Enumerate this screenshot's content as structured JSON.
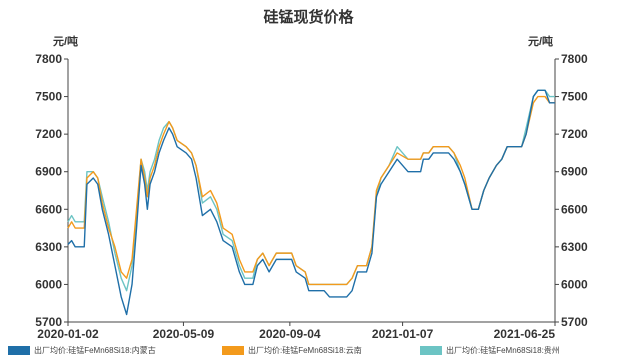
{
  "chart_data": {
    "type": "line",
    "title": "硅锰现货价格",
    "ylabel_left": "元/吨",
    "ylabel_right": "元/吨",
    "ylim": [
      5700,
      7800
    ],
    "yticks": [
      5700,
      6000,
      6300,
      6600,
      6900,
      7200,
      7500,
      7800
    ],
    "x_tick_labels": [
      "2020-01-02",
      "2020-05-09",
      "2020-09-04",
      "2021-01-07",
      "2021-06-25"
    ],
    "x_tick_dates": [
      "2020-01-02",
      "2020-05-09",
      "2020-09-04",
      "2021-01-07",
      "2021-06-25"
    ],
    "x_range": [
      "2020-01-02",
      "2021-06-25"
    ],
    "grid": false,
    "legend_position": "bottom",
    "colors": [
      "#1f6fa8",
      "#f39a1c",
      "#6cc4c4"
    ],
    "series": [
      {
        "name": "出厂均价:硅锰FeMn68Si18:内蒙古",
        "points": [
          [
            "2020-01-02",
            6320
          ],
          [
            "2020-01-06",
            6350
          ],
          [
            "2020-01-10",
            6300
          ],
          [
            "2020-01-20",
            6300
          ],
          [
            "2020-01-23",
            6800
          ],
          [
            "2020-01-30",
            6850
          ],
          [
            "2020-02-04",
            6800
          ],
          [
            "2020-02-09",
            6600
          ],
          [
            "2020-02-16",
            6400
          ],
          [
            "2020-02-23",
            6150
          ],
          [
            "2020-03-01",
            5900
          ],
          [
            "2020-03-07",
            5760
          ],
          [
            "2020-03-13",
            6000
          ],
          [
            "2020-03-18",
            6450
          ],
          [
            "2020-03-23",
            6950
          ],
          [
            "2020-03-27",
            6800
          ],
          [
            "2020-03-30",
            6600
          ],
          [
            "2020-04-02",
            6800
          ],
          [
            "2020-04-07",
            6900
          ],
          [
            "2020-04-12",
            7050
          ],
          [
            "2020-04-17",
            7150
          ],
          [
            "2020-04-23",
            7250
          ],
          [
            "2020-04-27",
            7200
          ],
          [
            "2020-05-02",
            7100
          ],
          [
            "2020-05-12",
            7050
          ],
          [
            "2020-05-18",
            7000
          ],
          [
            "2020-05-23",
            6850
          ],
          [
            "2020-05-30",
            6550
          ],
          [
            "2020-06-08",
            6600
          ],
          [
            "2020-06-15",
            6500
          ],
          [
            "2020-06-22",
            6350
          ],
          [
            "2020-07-02",
            6300
          ],
          [
            "2020-07-10",
            6100
          ],
          [
            "2020-07-16",
            6000
          ],
          [
            "2020-07-25",
            6000
          ],
          [
            "2020-07-30",
            6150
          ],
          [
            "2020-08-05",
            6200
          ],
          [
            "2020-08-12",
            6100
          ],
          [
            "2020-08-20",
            6200
          ],
          [
            "2020-09-06",
            6200
          ],
          [
            "2020-09-11",
            6100
          ],
          [
            "2020-09-21",
            6050
          ],
          [
            "2020-09-25",
            5950
          ],
          [
            "2020-10-12",
            5950
          ],
          [
            "2020-10-18",
            5900
          ],
          [
            "2020-11-06",
            5900
          ],
          [
            "2020-11-12",
            5950
          ],
          [
            "2020-11-18",
            6100
          ],
          [
            "2020-11-28",
            6100
          ],
          [
            "2020-12-04",
            6250
          ],
          [
            "2020-12-09",
            6700
          ],
          [
            "2020-12-14",
            6800
          ],
          [
            "2020-12-23",
            6900
          ],
          [
            "2021-01-01",
            7000
          ],
          [
            "2021-01-13",
            6900
          ],
          [
            "2021-01-27",
            6900
          ],
          [
            "2021-01-30",
            7000
          ],
          [
            "2021-02-05",
            7000
          ],
          [
            "2021-02-10",
            7050
          ],
          [
            "2021-02-27",
            7050
          ],
          [
            "2021-03-05",
            7000
          ],
          [
            "2021-03-12",
            6900
          ],
          [
            "2021-03-17",
            6800
          ],
          [
            "2021-03-25",
            6600
          ],
          [
            "2021-04-01",
            6600
          ],
          [
            "2021-04-07",
            6750
          ],
          [
            "2021-04-13",
            6850
          ],
          [
            "2021-04-21",
            6950
          ],
          [
            "2021-04-27",
            7000
          ],
          [
            "2021-05-03",
            7100
          ],
          [
            "2021-05-19",
            7100
          ],
          [
            "2021-05-24",
            7200
          ],
          [
            "2021-06-01",
            7500
          ],
          [
            "2021-06-06",
            7550
          ],
          [
            "2021-06-14",
            7550
          ],
          [
            "2021-06-19",
            7450
          ],
          [
            "2021-06-25",
            7450
          ]
        ]
      },
      {
        "name": "出厂均价:硅锰FeMn68Si18:云南",
        "points": [
          [
            "2020-01-02",
            6450
          ],
          [
            "2020-01-06",
            6500
          ],
          [
            "2020-01-10",
            6450
          ],
          [
            "2020-01-20",
            6450
          ],
          [
            "2020-01-23",
            6850
          ],
          [
            "2020-01-30",
            6900
          ],
          [
            "2020-02-04",
            6850
          ],
          [
            "2020-02-09",
            6650
          ],
          [
            "2020-02-16",
            6450
          ],
          [
            "2020-02-23",
            6300
          ],
          [
            "2020-03-01",
            6100
          ],
          [
            "2020-03-07",
            6050
          ],
          [
            "2020-03-13",
            6200
          ],
          [
            "2020-03-18",
            6600
          ],
          [
            "2020-03-23",
            7000
          ],
          [
            "2020-03-27",
            6850
          ],
          [
            "2020-03-30",
            6700
          ],
          [
            "2020-04-02",
            6850
          ],
          [
            "2020-04-07",
            6950
          ],
          [
            "2020-04-12",
            7100
          ],
          [
            "2020-04-17",
            7200
          ],
          [
            "2020-04-23",
            7300
          ],
          [
            "2020-04-27",
            7250
          ],
          [
            "2020-05-02",
            7150
          ],
          [
            "2020-05-12",
            7100
          ],
          [
            "2020-05-18",
            7050
          ],
          [
            "2020-05-23",
            6950
          ],
          [
            "2020-05-30",
            6700
          ],
          [
            "2020-06-08",
            6750
          ],
          [
            "2020-06-15",
            6650
          ],
          [
            "2020-06-22",
            6450
          ],
          [
            "2020-07-02",
            6400
          ],
          [
            "2020-07-10",
            6200
          ],
          [
            "2020-07-16",
            6100
          ],
          [
            "2020-07-25",
            6100
          ],
          [
            "2020-07-30",
            6200
          ],
          [
            "2020-08-05",
            6250
          ],
          [
            "2020-08-12",
            6150
          ],
          [
            "2020-08-20",
            6250
          ],
          [
            "2020-09-06",
            6250
          ],
          [
            "2020-09-11",
            6150
          ],
          [
            "2020-09-21",
            6100
          ],
          [
            "2020-09-25",
            6000
          ],
          [
            "2020-10-12",
            6000
          ],
          [
            "2020-10-18",
            6000
          ],
          [
            "2020-11-06",
            6000
          ],
          [
            "2020-11-12",
            6050
          ],
          [
            "2020-11-18",
            6150
          ],
          [
            "2020-11-28",
            6150
          ],
          [
            "2020-12-04",
            6300
          ],
          [
            "2020-12-09",
            6750
          ],
          [
            "2020-12-14",
            6850
          ],
          [
            "2020-12-23",
            6950
          ],
          [
            "2021-01-01",
            7050
          ],
          [
            "2021-01-13",
            7000
          ],
          [
            "2021-01-27",
            7000
          ],
          [
            "2021-01-30",
            7050
          ],
          [
            "2021-02-05",
            7050
          ],
          [
            "2021-02-10",
            7100
          ],
          [
            "2021-02-27",
            7100
          ],
          [
            "2021-03-05",
            7050
          ],
          [
            "2021-03-12",
            6950
          ],
          [
            "2021-03-17",
            6850
          ],
          [
            "2021-03-25",
            6600
          ],
          [
            "2021-04-01",
            6600
          ],
          [
            "2021-04-07",
            6750
          ],
          [
            "2021-04-13",
            6850
          ],
          [
            "2021-04-21",
            6950
          ],
          [
            "2021-04-27",
            7000
          ],
          [
            "2021-05-03",
            7100
          ],
          [
            "2021-05-19",
            7100
          ],
          [
            "2021-05-24",
            7200
          ],
          [
            "2021-06-01",
            7450
          ],
          [
            "2021-06-06",
            7500
          ],
          [
            "2021-06-14",
            7500
          ],
          [
            "2021-06-19",
            7450
          ],
          [
            "2021-06-25",
            7450
          ]
        ]
      },
      {
        "name": "出厂均价:硅锰FeMn68Si18:贵州",
        "points": [
          [
            "2020-01-02",
            6500
          ],
          [
            "2020-01-06",
            6550
          ],
          [
            "2020-01-10",
            6500
          ],
          [
            "2020-01-20",
            6500
          ],
          [
            "2020-01-23",
            6900
          ],
          [
            "2020-01-30",
            6900
          ],
          [
            "2020-02-04",
            6850
          ],
          [
            "2020-02-09",
            6700
          ],
          [
            "2020-02-16",
            6500
          ],
          [
            "2020-02-23",
            6250
          ],
          [
            "2020-03-01",
            6050
          ],
          [
            "2020-03-07",
            5950
          ],
          [
            "2020-03-13",
            6150
          ],
          [
            "2020-03-18",
            6550
          ],
          [
            "2020-03-23",
            7000
          ],
          [
            "2020-03-27",
            6900
          ],
          [
            "2020-03-30",
            6750
          ],
          [
            "2020-04-02",
            6900
          ],
          [
            "2020-04-07",
            7000
          ],
          [
            "2020-04-12",
            7150
          ],
          [
            "2020-04-17",
            7250
          ],
          [
            "2020-04-23",
            7300
          ],
          [
            "2020-04-27",
            7250
          ],
          [
            "2020-05-02",
            7150
          ],
          [
            "2020-05-12",
            7100
          ],
          [
            "2020-05-18",
            7050
          ],
          [
            "2020-05-23",
            6950
          ],
          [
            "2020-05-30",
            6650
          ],
          [
            "2020-06-08",
            6700
          ],
          [
            "2020-06-15",
            6600
          ],
          [
            "2020-06-22",
            6400
          ],
          [
            "2020-07-02",
            6350
          ],
          [
            "2020-07-10",
            6150
          ],
          [
            "2020-07-16",
            6050
          ],
          [
            "2020-07-25",
            6050
          ],
          [
            "2020-07-30",
            6200
          ],
          [
            "2020-08-05",
            6250
          ],
          [
            "2020-08-12",
            6150
          ],
          [
            "2020-08-20",
            6250
          ],
          [
            "2020-09-06",
            6250
          ],
          [
            "2020-09-11",
            6150
          ],
          [
            "2020-09-21",
            6100
          ],
          [
            "2020-09-25",
            6000
          ],
          [
            "2020-10-12",
            6000
          ],
          [
            "2020-10-18",
            6000
          ],
          [
            "2020-11-06",
            6000
          ],
          [
            "2020-11-12",
            6050
          ],
          [
            "2020-11-18",
            6150
          ],
          [
            "2020-11-28",
            6150
          ],
          [
            "2020-12-04",
            6300
          ],
          [
            "2020-12-09",
            6700
          ],
          [
            "2020-12-14",
            6850
          ],
          [
            "2020-12-23",
            6950
          ],
          [
            "2021-01-01",
            7100
          ],
          [
            "2021-01-13",
            7000
          ],
          [
            "2021-01-27",
            7000
          ],
          [
            "2021-01-30",
            7050
          ],
          [
            "2021-02-05",
            7050
          ],
          [
            "2021-02-10",
            7100
          ],
          [
            "2021-02-27",
            7100
          ],
          [
            "2021-03-05",
            7050
          ],
          [
            "2021-03-12",
            6900
          ],
          [
            "2021-03-17",
            6800
          ],
          [
            "2021-03-25",
            6600
          ],
          [
            "2021-04-01",
            6600
          ],
          [
            "2021-04-07",
            6750
          ],
          [
            "2021-04-13",
            6850
          ],
          [
            "2021-04-21",
            6950
          ],
          [
            "2021-04-27",
            7000
          ],
          [
            "2021-05-03",
            7100
          ],
          [
            "2021-05-19",
            7100
          ],
          [
            "2021-05-24",
            7250
          ],
          [
            "2021-06-01",
            7500
          ],
          [
            "2021-06-06",
            7550
          ],
          [
            "2021-06-14",
            7550
          ],
          [
            "2021-06-19",
            7500
          ],
          [
            "2021-06-25",
            7500
          ]
        ]
      }
    ]
  }
}
